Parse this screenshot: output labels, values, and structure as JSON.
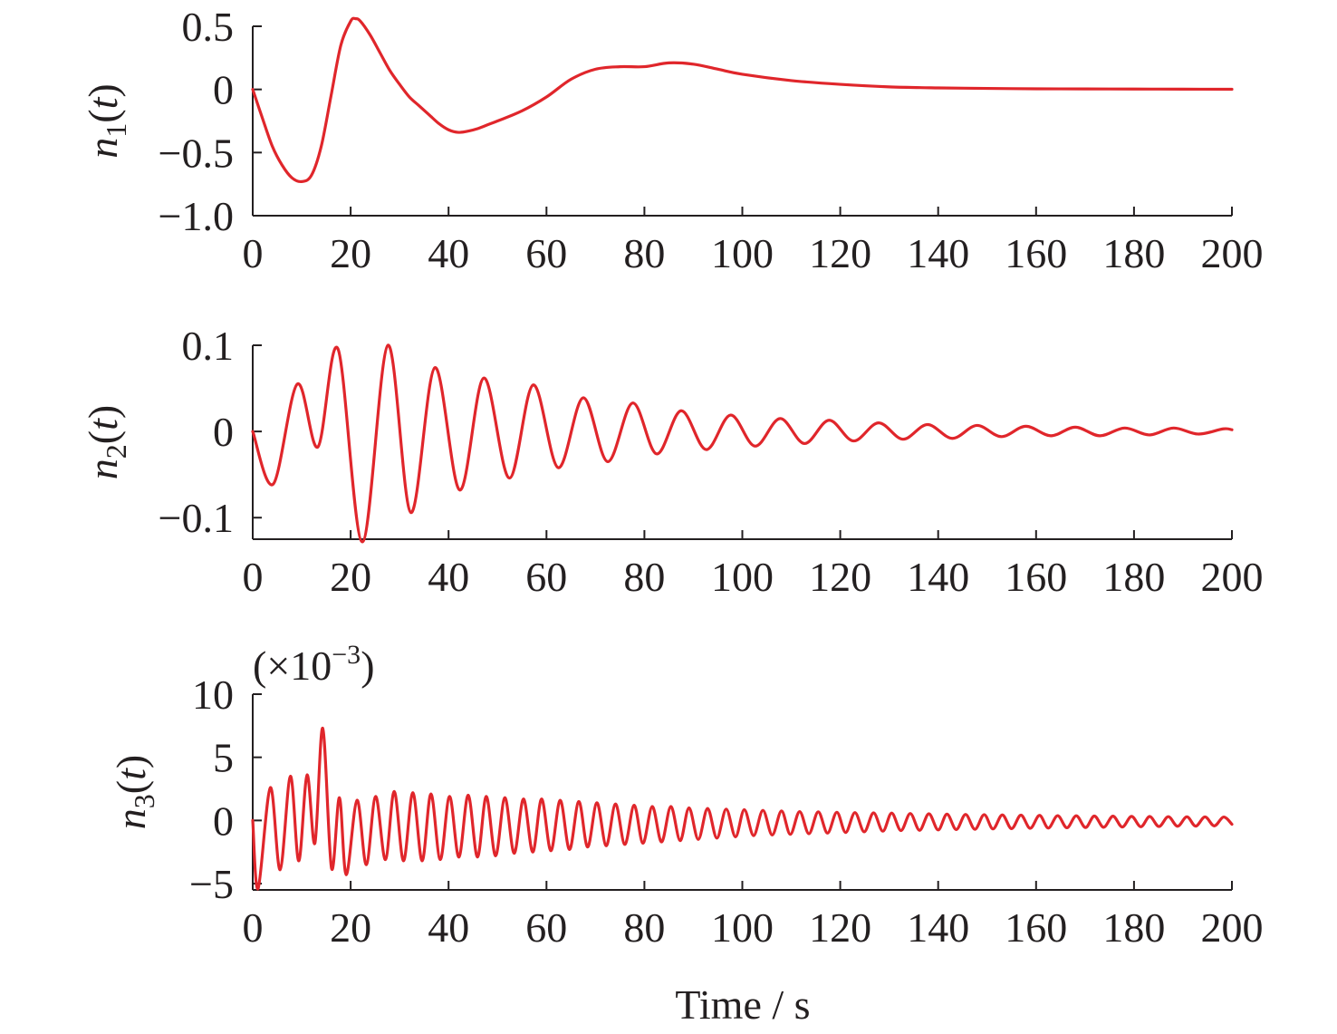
{
  "chart_data": [
    {
      "type": "line",
      "ylabel_var": "n",
      "ylabel_sub": "1",
      "ylabel_arg": "t",
      "xlim": [
        0,
        200
      ],
      "ylim": [
        -1.0,
        0.5
      ],
      "xticks": [
        0,
        20,
        40,
        60,
        80,
        100,
        120,
        140,
        160,
        180,
        200
      ],
      "xtick_labels": [
        "0",
        "20",
        "40",
        "60",
        "80",
        "100",
        "120",
        "140",
        "160",
        "180",
        "200"
      ],
      "yticks": [
        -1.0,
        -0.5,
        0,
        0.5
      ],
      "ytick_labels": [
        "−1.0",
        "−0.5",
        "0",
        "0.5"
      ],
      "grid": false,
      "series": [
        {
          "color": "#e0262b",
          "x": [
            0,
            2,
            4,
            6,
            8,
            10,
            12,
            14,
            16,
            18,
            20,
            21,
            22,
            24,
            26,
            28,
            30,
            32,
            34,
            36,
            38,
            40,
            42,
            44,
            46,
            48,
            50,
            55,
            60,
            65,
            70,
            75,
            80,
            85,
            90,
            95,
            100,
            110,
            120,
            130,
            140,
            150,
            160,
            170,
            180,
            190,
            200
          ],
          "y": [
            0,
            -0.23,
            -0.45,
            -0.6,
            -0.7,
            -0.73,
            -0.68,
            -0.45,
            -0.05,
            0.35,
            0.54,
            0.56,
            0.54,
            0.43,
            0.29,
            0.15,
            0.04,
            -0.06,
            -0.13,
            -0.2,
            -0.27,
            -0.32,
            -0.34,
            -0.33,
            -0.31,
            -0.28,
            -0.25,
            -0.17,
            -0.06,
            0.08,
            0.16,
            0.18,
            0.18,
            0.21,
            0.2,
            0.16,
            0.12,
            0.07,
            0.04,
            0.02,
            0.012,
            0.008,
            0.005,
            0.004,
            0.003,
            0.002,
            0.001
          ]
        }
      ]
    },
    {
      "type": "line",
      "ylabel_var": "n",
      "ylabel_sub": "2",
      "ylabel_arg": "t",
      "xlim": [
        0,
        200
      ],
      "ylim": [
        -0.125,
        0.1
      ],
      "xticks": [
        0,
        20,
        40,
        60,
        80,
        100,
        120,
        140,
        160,
        180,
        200
      ],
      "xtick_labels": [
        "0",
        "20",
        "40",
        "60",
        "80",
        "100",
        "120",
        "140",
        "160",
        "180",
        "200"
      ],
      "yticks": [
        -0.1,
        0,
        0.1
      ],
      "ytick_labels": [
        "−0.1",
        "0",
        "0.1"
      ],
      "grid": false,
      "series": [
        {
          "color": "#e0262b",
          "x": [
            0,
            4.2,
            9.1,
            13.3,
            17.4,
            22.4,
            27.6,
            32.3,
            37.2,
            42.3,
            47.2,
            52.4,
            57.3,
            62.4,
            67.5,
            72.5,
            77.6,
            82.5,
            87.5,
            92.6,
            97.6,
            102.6,
            107.7,
            112.7,
            117.7,
            122.7,
            127.8,
            132.8,
            137.8,
            142.9,
            147.9,
            152.9,
            157.9,
            163.0,
            168.0,
            173.0,
            178.1,
            183.1,
            188.1,
            193.1,
            198.2,
            200
          ],
          "y": [
            0,
            -0.061,
            0.055,
            -0.018,
            0.096,
            -0.128,
            0.1,
            -0.094,
            0.074,
            -0.068,
            0.062,
            -0.054,
            0.054,
            -0.042,
            0.039,
            -0.035,
            0.033,
            -0.026,
            0.024,
            -0.021,
            0.019,
            -0.017,
            0.015,
            -0.014,
            0.013,
            -0.011,
            0.01,
            -0.009,
            0.008,
            -0.008,
            0.007,
            -0.006,
            0.006,
            -0.005,
            0.005,
            -0.005,
            0.004,
            -0.004,
            0.004,
            -0.003,
            0.003,
            0.002
          ]
        }
      ]
    },
    {
      "type": "line",
      "ylabel_var": "n",
      "ylabel_sub": "3",
      "ylabel_arg": "t",
      "xlim": [
        0,
        200
      ],
      "ylim": [
        -5.5,
        10
      ],
      "xticks": [
        0,
        20,
        40,
        60,
        80,
        100,
        120,
        140,
        160,
        180,
        200
      ],
      "xtick_labels": [
        "0",
        "20",
        "40",
        "60",
        "80",
        "100",
        "120",
        "140",
        "160",
        "180",
        "200"
      ],
      "yticks": [
        -5,
        0,
        5,
        10
      ],
      "ytick_labels": [
        "−5",
        "0",
        "5",
        "10"
      ],
      "scale_label": "(×10",
      "scale_exp": "−3",
      "scale_close": ")",
      "xlabel": "Time / s",
      "grid": false,
      "series": [
        {
          "color": "#e0262b",
          "x": [
            0,
            1.1,
            3.6,
            5.6,
            7.7,
            9.4,
            11.1,
            12.7,
            14.3,
            16.1,
            17.7,
            19.1,
            21.3,
            23.2,
            25.1,
            27.1,
            28.9,
            30.8,
            32.7,
            34.6,
            36.4,
            38.3,
            40.2,
            42.1,
            44.0,
            45.9,
            47.7,
            49.6,
            51.5,
            53.4,
            55.3,
            57.2,
            59.0,
            60.9,
            62.8,
            64.7,
            66.6,
            68.4,
            70.3,
            72.2,
            74.1,
            76.0,
            77.9,
            79.7,
            81.6,
            83.5,
            85.4,
            87.3,
            89.1,
            91.0,
            92.9,
            94.8,
            96.7,
            98.6,
            100.4,
            102.3,
            104.2,
            106.1,
            108.0,
            109.8,
            111.7,
            113.6,
            115.5,
            117.4,
            119.3,
            121.1,
            123.0,
            124.9,
            126.8,
            128.7,
            130.5,
            132.4,
            134.3,
            136.2,
            138.1,
            140.0,
            141.8,
            143.7,
            145.6,
            147.5,
            149.4,
            151.2,
            153.1,
            155.0,
            156.9,
            158.8,
            160.7,
            162.5,
            164.4,
            166.3,
            168.2,
            170.1,
            171.9,
            173.8,
            175.7,
            177.6,
            179.5,
            181.4,
            183.2,
            185.1,
            187.0,
            188.9,
            190.8,
            192.6,
            194.5,
            196.4,
            198.3,
            200
          ],
          "y": [
            0,
            -5.4,
            2.6,
            -3.9,
            3.5,
            -3.2,
            3.6,
            -1.8,
            7.3,
            -3.8,
            1.8,
            -4.3,
            1.6,
            -3.5,
            1.9,
            -3.1,
            2.3,
            -3.2,
            2.2,
            -3.2,
            2.1,
            -3.1,
            1.9,
            -2.9,
            2.0,
            -2.9,
            1.9,
            -2.8,
            1.8,
            -2.6,
            1.7,
            -2.5,
            1.7,
            -2.4,
            1.6,
            -2.3,
            1.5,
            -2.1,
            1.4,
            -2.0,
            1.3,
            -1.9,
            1.2,
            -1.8,
            1.1,
            -1.7,
            1.1,
            -1.6,
            1.0,
            -1.5,
            0.95,
            -1.4,
            0.9,
            -1.3,
            0.85,
            -1.2,
            0.8,
            -1.15,
            0.75,
            -1.1,
            0.7,
            -1.05,
            0.68,
            -1.0,
            0.65,
            -0.95,
            0.62,
            -0.9,
            0.6,
            -0.85,
            0.58,
            -0.8,
            0.55,
            -0.78,
            0.53,
            -0.75,
            0.5,
            -0.72,
            0.48,
            -0.7,
            0.46,
            -0.67,
            0.44,
            -0.65,
            0.42,
            -0.62,
            0.4,
            -0.6,
            0.38,
            -0.58,
            0.37,
            -0.56,
            0.35,
            -0.54,
            0.34,
            -0.52,
            0.32,
            -0.5,
            0.31,
            -0.48,
            0.3,
            -0.46,
            0.29,
            -0.45,
            0.28,
            -0.43,
            0.27,
            -0.3
          ]
        }
      ]
    }
  ]
}
